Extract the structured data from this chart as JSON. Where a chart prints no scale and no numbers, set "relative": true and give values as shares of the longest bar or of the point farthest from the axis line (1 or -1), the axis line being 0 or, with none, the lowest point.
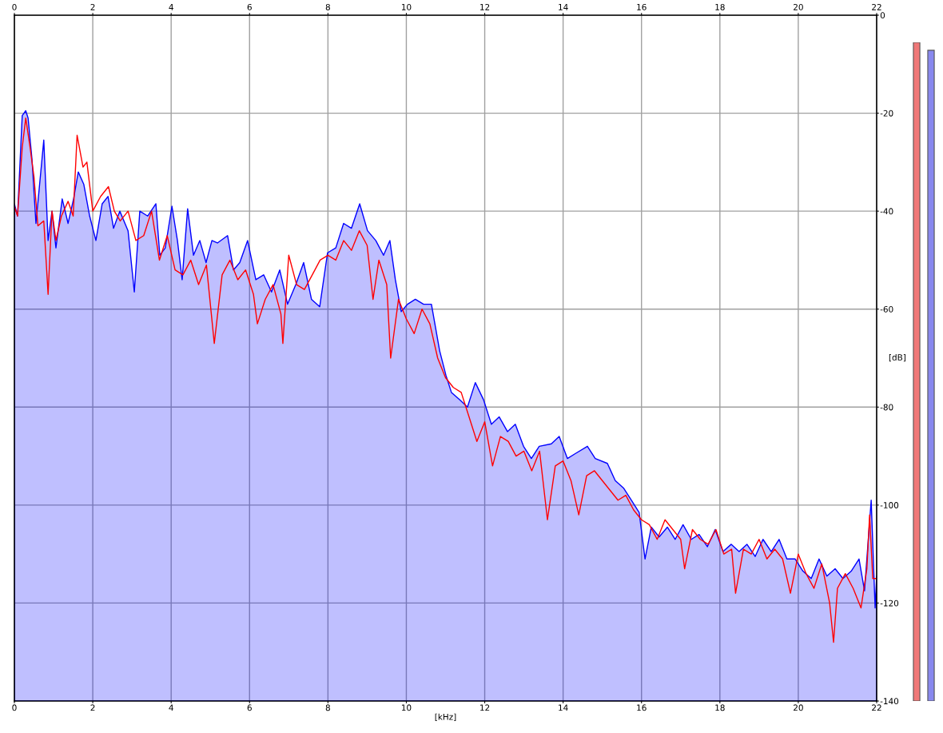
{
  "chart_data": [
    {
      "type": "line",
      "xlabel": "[kHz]",
      "ylabel": "[dB]",
      "xlim": [
        0,
        22
      ],
      "xticks": [
        0,
        2,
        4,
        6,
        8,
        10,
        12,
        14,
        16,
        18,
        20,
        22
      ],
      "x2lim": [
        0,
        22
      ],
      "x2ticks": [
        0,
        2,
        4,
        6,
        8,
        10,
        12,
        14,
        16,
        18,
        20,
        22
      ],
      "ylim": [
        -140,
        0
      ],
      "yticks": [
        -140,
        -120,
        -100,
        -80,
        -60,
        -40,
        -20,
        0
      ],
      "grid": true,
      "legend": false,
      "series": [
        {
          "type": "line",
          "color": "#ff0000",
          "x": [
            0,
            0.08,
            0.2,
            0.29,
            0.4,
            0.5,
            0.6,
            0.75,
            0.86,
            0.96,
            1.06,
            1.2,
            1.37,
            1.5,
            1.6,
            1.75,
            1.85,
            2.0,
            2.2,
            2.4,
            2.55,
            2.7,
            2.9,
            3.1,
            3.3,
            3.5,
            3.7,
            3.9,
            4.1,
            4.3,
            4.5,
            4.7,
            4.9,
            5.1,
            5.3,
            5.5,
            5.7,
            5.9,
            6.1,
            6.2,
            6.4,
            6.6,
            6.8,
            6.85,
            7.0,
            7.2,
            7.4,
            7.6,
            7.8,
            8.0,
            8.2,
            8.4,
            8.6,
            8.8,
            9.0,
            9.15,
            9.3,
            9.5,
            9.6,
            9.8,
            10.0,
            10.2,
            10.4,
            10.6,
            10.8,
            11.0,
            11.2,
            11.4,
            11.6,
            11.8,
            12.0,
            12.2,
            12.4,
            12.6,
            12.8,
            13.0,
            13.2,
            13.4,
            13.6,
            13.8,
            14.0,
            14.2,
            14.4,
            14.6,
            14.8,
            15.0,
            15.2,
            15.4,
            15.6,
            15.8,
            16.0,
            16.2,
            16.4,
            16.6,
            16.8,
            17.0,
            17.1,
            17.3,
            17.5,
            17.7,
            17.9,
            18.1,
            18.3,
            18.4,
            18.6,
            18.8,
            19.0,
            19.2,
            19.4,
            19.6,
            19.8,
            20.0,
            20.2,
            20.4,
            20.6,
            20.8,
            20.9,
            21.0,
            21.2,
            21.4,
            21.6,
            21.75,
            21.82,
            21.9,
            22
          ],
          "values": [
            -39,
            -41,
            -27,
            -21,
            -27,
            -33,
            -43,
            -42,
            -57,
            -40,
            -46,
            -41,
            -38,
            -41,
            -24.5,
            -31,
            -30,
            -40,
            -37,
            -35,
            -40,
            -42,
            -40,
            -46,
            -45,
            -40,
            -50,
            -45,
            -52,
            -53,
            -50,
            -55,
            -51,
            -67,
            -53,
            -50,
            -54,
            -52,
            -57,
            -63,
            -58,
            -55,
            -61,
            -67,
            -49,
            -55,
            -56,
            -53,
            -50,
            -49,
            -50,
            -46,
            -48,
            -44,
            -47,
            -58,
            -50,
            -55,
            -70,
            -58,
            -62,
            -65,
            -60,
            -63,
            -70,
            -74,
            -76,
            -77,
            -82,
            -87,
            -83,
            -92,
            -86,
            -87,
            -90,
            -89,
            -93,
            -89,
            -103,
            -92,
            -91,
            -95,
            -102,
            -94,
            -93,
            -95,
            -97,
            -99,
            -98,
            -101,
            -103,
            -104,
            -107,
            -103,
            -105,
            -107,
            -113,
            -105,
            -107,
            -108,
            -105,
            -110,
            -109,
            -118,
            -109,
            -110,
            -107,
            -111,
            -109,
            -111,
            -118,
            -110,
            -114,
            -117,
            -112,
            -120,
            -128,
            -117,
            -114,
            -117,
            -121,
            -113,
            -102,
            -115,
            -115
          ]
        },
        {
          "type": "area",
          "color": "#0000ff",
          "x": [
            0,
            0,
            0.08,
            0.2,
            0.29,
            0.35,
            0.45,
            0.55,
            0.75,
            0.86,
            0.96,
            1.06,
            1.22,
            1.37,
            1.51,
            1.63,
            1.77,
            1.92,
            2.08,
            2.24,
            2.39,
            2.53,
            2.69,
            2.9,
            3.06,
            3.2,
            3.4,
            3.61,
            3.71,
            3.85,
            4.02,
            4.16,
            4.28,
            4.42,
            4.57,
            4.73,
            4.89,
            5.04,
            5.18,
            5.44,
            5.59,
            5.75,
            5.95,
            6.16,
            6.36,
            6.56,
            6.77,
            6.97,
            7.18,
            7.38,
            7.58,
            7.79,
            7.99,
            8.2,
            8.4,
            8.6,
            8.81,
            9.01,
            9.22,
            9.42,
            9.58,
            9.72,
            9.87,
            10.03,
            10.23,
            10.44,
            10.64,
            10.85,
            11.01,
            11.15,
            11.36,
            11.56,
            11.76,
            11.97,
            12.17,
            12.37,
            12.58,
            12.78,
            12.99,
            13.19,
            13.39,
            13.7,
            13.9,
            14.11,
            14.31,
            14.62,
            14.82,
            15.13,
            15.33,
            15.54,
            15.74,
            15.94,
            16.09,
            16.25,
            16.45,
            16.66,
            16.86,
            17.06,
            17.27,
            17.47,
            17.68,
            17.88,
            18.08,
            18.29,
            18.49,
            18.69,
            18.9,
            19.1,
            19.31,
            19.51,
            19.71,
            19.92,
            20.12,
            20.33,
            20.53,
            20.73,
            20.94,
            21.14,
            21.35,
            21.55,
            21.69,
            21.86,
            21.96,
            22,
            22
          ],
          "values": [
            -140,
            -38.5,
            -41,
            -20.5,
            -19.5,
            -21,
            -29.5,
            -42.5,
            -25.5,
            -46,
            -40,
            -47.5,
            -37.5,
            -42.5,
            -37.5,
            -32,
            -34.5,
            -41,
            -46,
            -38.5,
            -37,
            -43.5,
            -40,
            -44,
            -56.5,
            -40,
            -41,
            -38.5,
            -49,
            -47.5,
            -39,
            -46,
            -54,
            -39.5,
            -49,
            -46,
            -50.5,
            -46,
            -46.5,
            -45,
            -52,
            -50.5,
            -46,
            -54,
            -53,
            -56.5,
            -52,
            -59,
            -55,
            -50.5,
            -58,
            -59.5,
            -48.5,
            -47.5,
            -42.5,
            -43.5,
            -38.5,
            -44,
            -46,
            -49,
            -46,
            -54,
            -60.5,
            -59,
            -58,
            -59,
            -59,
            -68.5,
            -73.5,
            -77,
            -78.5,
            -80,
            -75,
            -78.5,
            -83.5,
            -82,
            -85,
            -83.5,
            -88,
            -90.5,
            -88,
            -87.5,
            -86,
            -90.5,
            -89.5,
            -88,
            -90.5,
            -91.5,
            -95,
            -96.5,
            -99,
            -101.5,
            -111,
            -104.5,
            -106.5,
            -104.5,
            -107,
            -104,
            -107,
            -106,
            -108.5,
            -105,
            -109.5,
            -108,
            -109.5,
            -108,
            -110.5,
            -107,
            -109.5,
            -107,
            -111,
            -111,
            -113.5,
            -115,
            -111,
            -114.5,
            -113,
            -115,
            -113.5,
            -111,
            -117.5,
            -99,
            -121,
            -114.5,
            -140
          ]
        }
      ]
    },
    {
      "type": "bar",
      "relative": true,
      "categories": [
        null,
        null
      ],
      "values": [
        1,
        0.988
      ],
      "colors": [
        "#f07878",
        "#8888ee"
      ]
    }
  ]
}
